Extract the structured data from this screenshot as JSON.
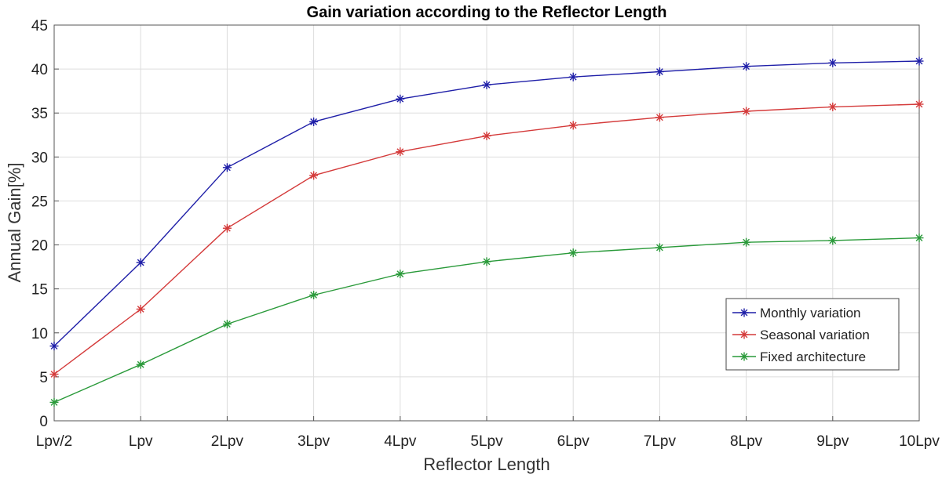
{
  "chart_data": {
    "type": "line",
    "title": "Gain variation according to the Reflector Length",
    "xlabel": "Reflector Length",
    "ylabel": "Annual Gain[%]",
    "categories": [
      "Lpv/2",
      "Lpv",
      "2Lpv",
      "3Lpv",
      "4Lpv",
      "5Lpv",
      "6Lpv",
      "7Lpv",
      "8Lpv",
      "9Lpv",
      "10Lpv"
    ],
    "ylim": [
      0,
      45
    ],
    "yticks": [
      0,
      5,
      10,
      15,
      20,
      25,
      30,
      35,
      40,
      45
    ],
    "grid": true,
    "legend_position": "bottom-right",
    "marker": "asterisk",
    "series": [
      {
        "name": "Monthly variation",
        "color": "#1f1fa8",
        "values": [
          8.5,
          18.0,
          28.8,
          34.0,
          36.6,
          38.2,
          39.1,
          39.7,
          40.3,
          40.7,
          40.9
        ]
      },
      {
        "name": "Seasonal variation",
        "color": "#d43a3a",
        "values": [
          5.3,
          12.7,
          21.9,
          27.9,
          30.6,
          32.4,
          33.6,
          34.5,
          35.2,
          35.7,
          36.0
        ]
      },
      {
        "name": "Fixed architecture",
        "color": "#2a9a3a",
        "values": [
          2.1,
          6.4,
          11.0,
          14.3,
          16.7,
          18.1,
          19.1,
          19.7,
          20.3,
          20.5,
          20.8
        ]
      }
    ]
  }
}
